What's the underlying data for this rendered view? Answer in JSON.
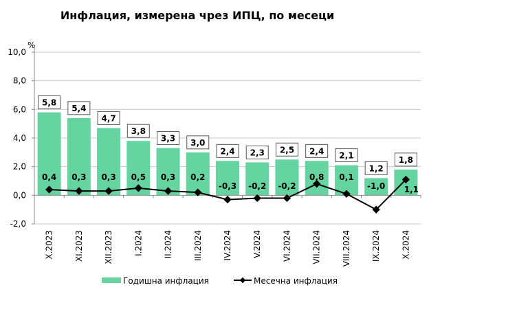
{
  "chart_data": {
    "type": "bar+line",
    "title": "Инфлация, измерена чрез ИПЦ, по месеци",
    "ylabel": "%",
    "ylim": [
      -2,
      10
    ],
    "yticks": [
      "-2,0",
      "0,0",
      "2,0",
      "4,0",
      "6,0",
      "8,0",
      "10,0"
    ],
    "ytick_values": [
      -2,
      0,
      2,
      4,
      6,
      8,
      10
    ],
    "grid": true,
    "categories": [
      "X.2023",
      "XI.2023",
      "XII.2023",
      "I.2024",
      "II.2024",
      "III.2024",
      "IV.2024",
      "V.2024",
      "VI.2024",
      "VII.2024",
      "VIII.2024",
      "IX.2024",
      "X.2024"
    ],
    "series": [
      {
        "name": "Годишна инфлация",
        "type": "bar",
        "color": "#66d4a0",
        "values": [
          5.8,
          5.4,
          4.7,
          3.8,
          3.3,
          3.0,
          2.4,
          2.3,
          2.5,
          2.4,
          2.1,
          1.2,
          1.8
        ],
        "labels": [
          "5,8",
          "5,4",
          "4,7",
          "3,8",
          "3,3",
          "3,0",
          "2,4",
          "2,3",
          "2,5",
          "2,4",
          "2,1",
          "1,2",
          "1,8"
        ]
      },
      {
        "name": "Месечна инфлация",
        "type": "line",
        "color": "#000000",
        "values": [
          0.4,
          0.3,
          0.3,
          0.5,
          0.3,
          0.2,
          -0.3,
          -0.2,
          -0.2,
          0.8,
          0.1,
          -1.0,
          1.1
        ],
        "labels": [
          "0,4",
          "0,3",
          "0,3",
          "0,5",
          "0,3",
          "0,2",
          "-0,3",
          "-0,2",
          "-0,2",
          "0,8",
          "0,1",
          "-1,0",
          "1,1"
        ]
      }
    ],
    "legend_placement": "bottom"
  }
}
